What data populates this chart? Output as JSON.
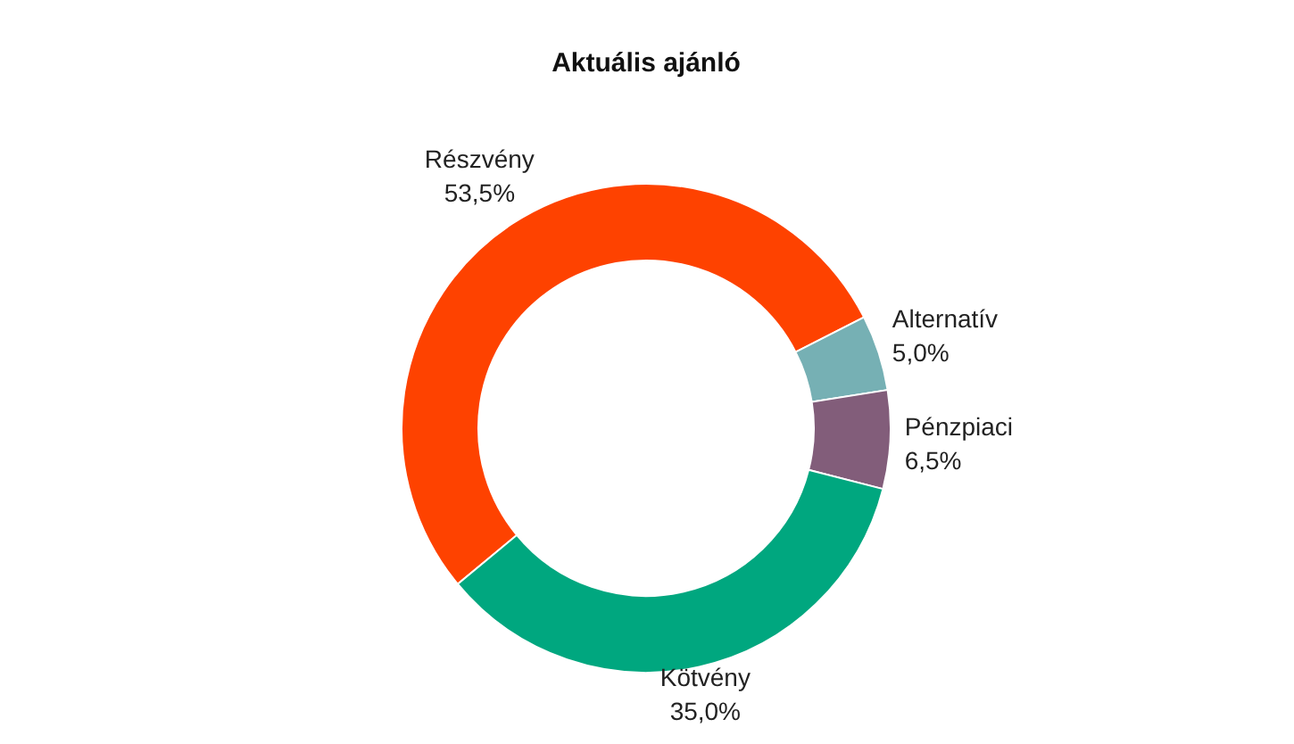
{
  "chart_data": {
    "type": "donut",
    "title": "Aktuális ajánló",
    "categories": [
      "Részvény",
      "Alternatív",
      "Pénzpiaci",
      "Kötvény"
    ],
    "values": [
      53.5,
      5.0,
      6.5,
      35.0
    ],
    "colors": [
      "#fe4200",
      "#76b0b4",
      "#825d7a",
      "#00a77f"
    ],
    "value_labels": [
      "53,5%",
      "5,0%",
      "6,5%",
      "35,0%"
    ],
    "legend": false
  }
}
